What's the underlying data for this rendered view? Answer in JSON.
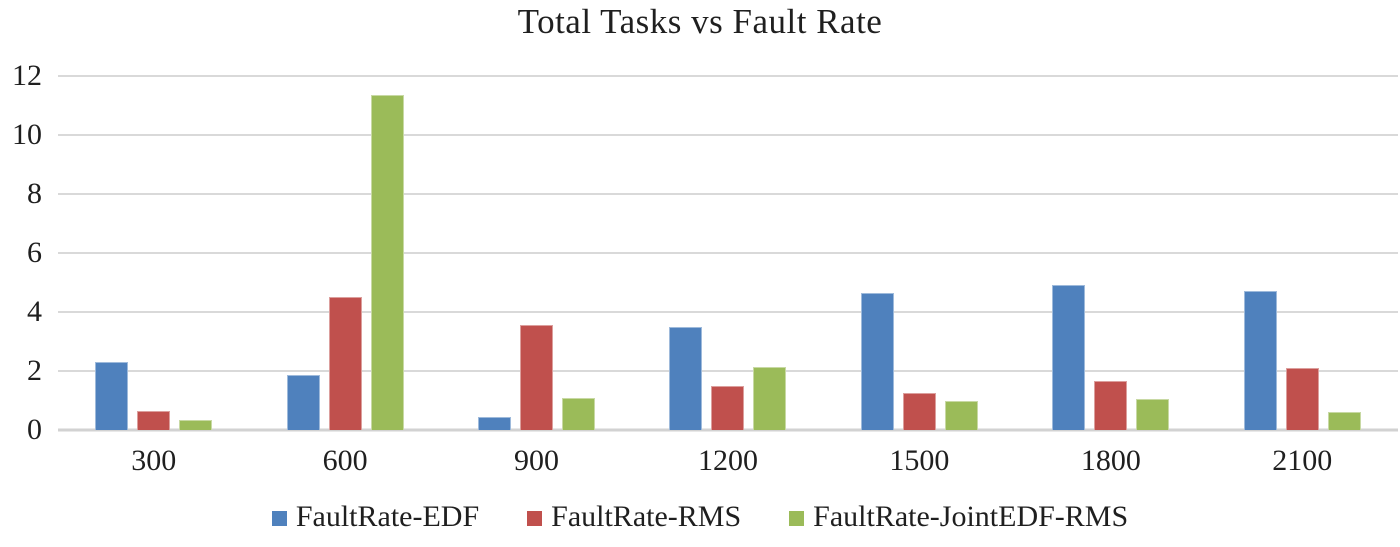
{
  "chart_data": {
    "type": "bar",
    "title": "Total Tasks vs Fault Rate",
    "categories": [
      "300",
      "600",
      "900",
      "1200",
      "1500",
      "1800",
      "2100"
    ],
    "series": [
      {
        "name": "FaultRate-EDF",
        "color": "#4F81BD",
        "values": [
          2.3,
          1.85,
          0.45,
          3.5,
          4.65,
          4.9,
          4.7
        ]
      },
      {
        "name": "FaultRate-RMS",
        "color": "#C0504D",
        "values": [
          0.65,
          4.5,
          3.55,
          1.5,
          1.25,
          1.65,
          2.1
        ]
      },
      {
        "name": "FaultRate-JointEDF-RMS",
        "color": "#9BBB59",
        "values": [
          0.35,
          11.35,
          1.1,
          2.15,
          1.0,
          1.05,
          0.6
        ]
      }
    ],
    "xlabel": "",
    "ylabel": "",
    "ylim": [
      0,
      12
    ],
    "yticks": [
      0,
      2,
      4,
      6,
      8,
      10,
      12
    ],
    "grid": "horizontal",
    "gridline_color": "#D9D9D9",
    "legend_position": "bottom"
  }
}
